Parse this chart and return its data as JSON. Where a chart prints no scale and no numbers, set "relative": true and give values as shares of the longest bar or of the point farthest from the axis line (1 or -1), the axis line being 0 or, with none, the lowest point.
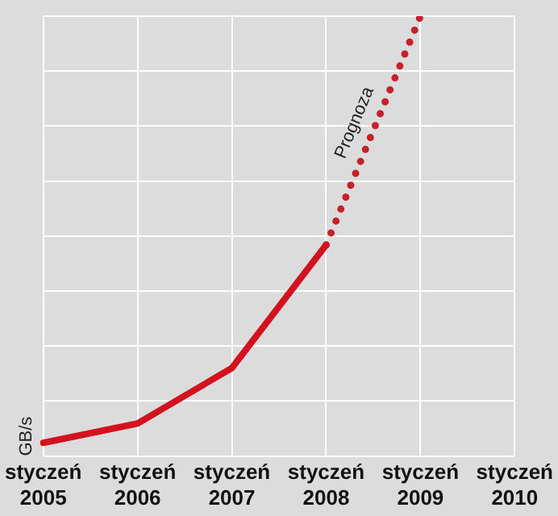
{
  "chart_data": {
    "type": "line",
    "ylabel": "GB/s",
    "relative": true,
    "categories": [
      "styczeń 2005",
      "styczeń 2006",
      "styczeń 2007",
      "styczeń 2008",
      "styczeń 2009",
      "styczeń 2010"
    ],
    "grid": true,
    "marker": "none",
    "series": [
      {
        "values": [
          0.03,
          0.074,
          0.2,
          0.48,
          null,
          null
        ],
        "color": "#d4121f",
        "line_style": "solid"
      },
      {
        "name": "Prognoza",
        "values": [
          null,
          null,
          null,
          0.48,
          1,
          null
        ],
        "color": "#c8202a",
        "line_style": "dotted"
      }
    ]
  }
}
